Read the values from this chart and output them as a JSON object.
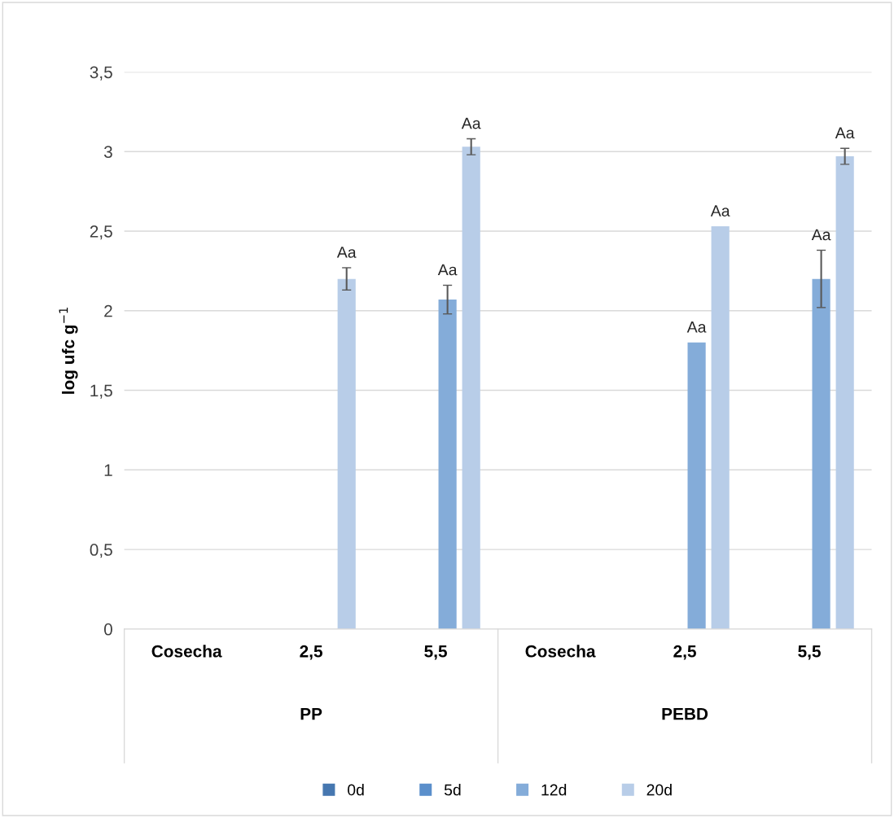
{
  "chart_data": {
    "type": "bar",
    "ylabel": "log ufc g$^{−1}$",
    "categories": [
      "Cosecha",
      "2,5",
      "5,5",
      "Cosecha",
      "2,5",
      "5,5"
    ],
    "annotations": [
      "PP",
      "PEBD"
    ],
    "series": [
      {
        "name": "0d",
        "color": "#4677b0",
        "values": [
          null,
          null,
          null,
          null,
          null,
          null
        ]
      },
      {
        "name": "5d",
        "color": "#5b8fcb",
        "values": [
          null,
          null,
          null,
          null,
          null,
          null
        ]
      },
      {
        "name": "12d",
        "color": "#84acd9",
        "values": [
          null,
          null,
          2.07,
          null,
          1.8,
          2.2
        ],
        "errors": [
          null,
          null,
          0.09,
          null,
          null,
          0.18
        ],
        "value_labels": [
          null,
          null,
          "Aa",
          null,
          "Aa",
          "Aa"
        ]
      },
      {
        "name": "20d",
        "color": "#b8cde8",
        "values": [
          null,
          2.2,
          3.03,
          null,
          2.53,
          2.97
        ],
        "errors": [
          null,
          0.07,
          0.05,
          null,
          null,
          0.05
        ],
        "value_labels": [
          null,
          "Aa",
          "Aa",
          null,
          "Aa",
          "Aa"
        ]
      }
    ],
    "ylim": [
      0,
      3.5
    ],
    "yticks": [
      {
        "value": 0,
        "label": "0"
      },
      {
        "value": 0.5,
        "label": "0,5"
      },
      {
        "value": 1,
        "label": "1"
      },
      {
        "value": 1.5,
        "label": "1,5"
      },
      {
        "value": 2,
        "label": "2"
      },
      {
        "value": 2.5,
        "label": "2,5"
      },
      {
        "value": 3,
        "label": "3"
      },
      {
        "value": 3.5,
        "label": "3,5"
      }
    ],
    "grid": "y",
    "legend": "bottom"
  }
}
